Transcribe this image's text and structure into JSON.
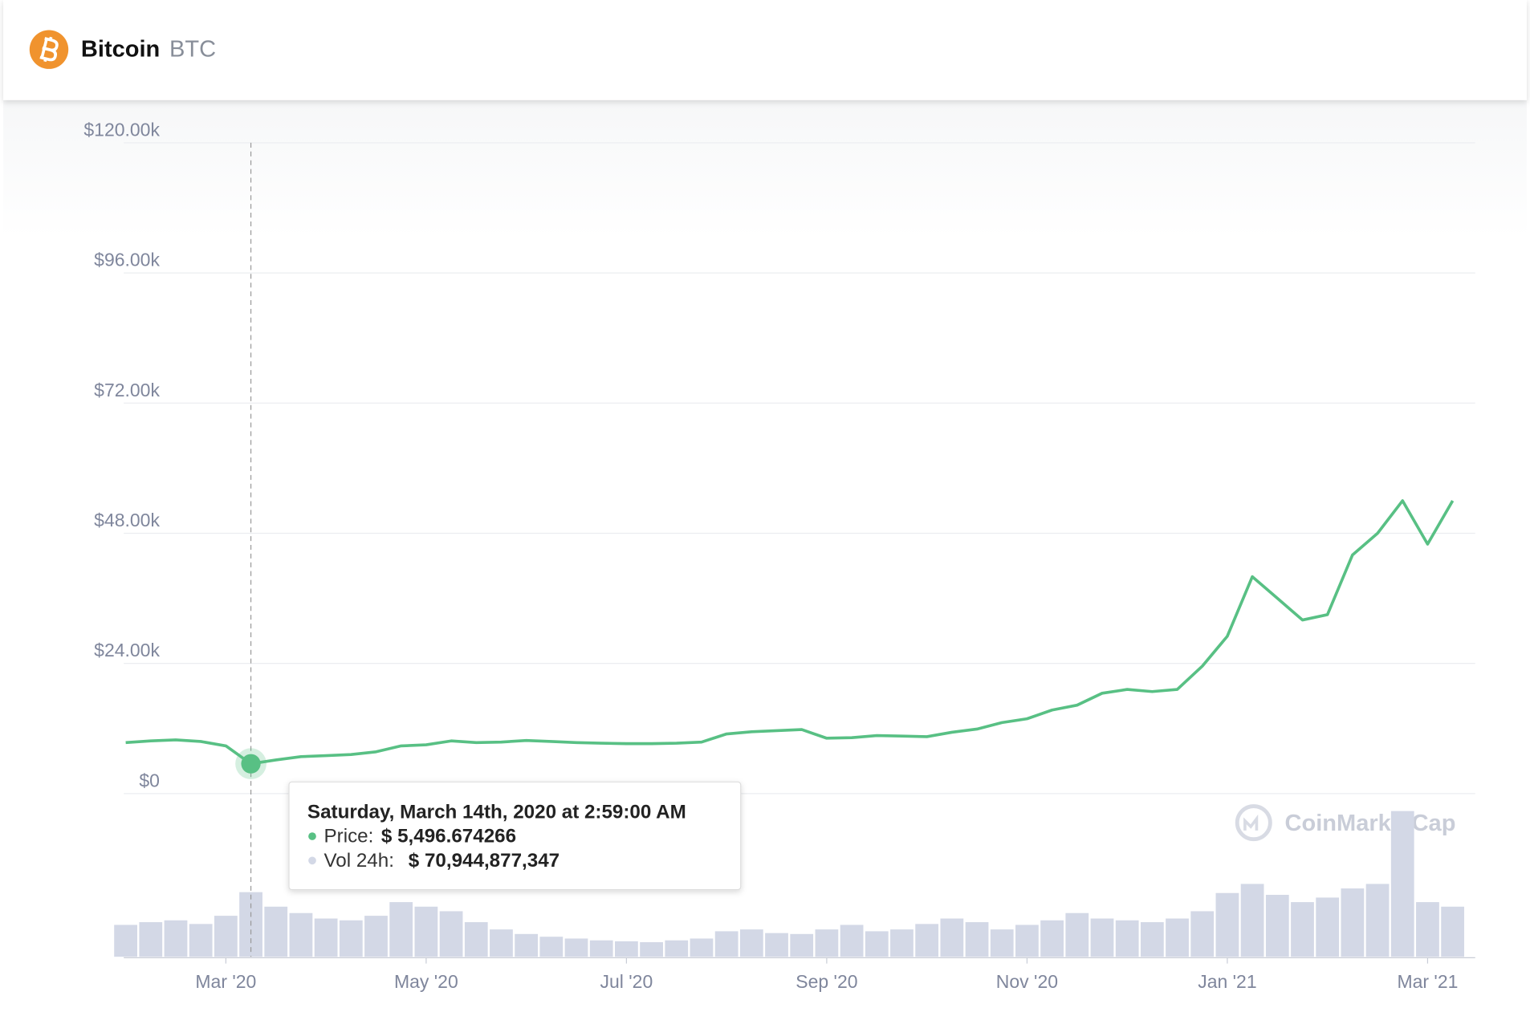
{
  "header": {
    "name": "Bitcoin",
    "symbol": "BTC"
  },
  "watermark": "CoinMarketCap",
  "tooltip": {
    "date": "Saturday, March 14th, 2020 at 2:59:00 AM",
    "price_label": "Price:",
    "price": "$ 5,496.674266",
    "volume_label": "Vol 24h:",
    "volume": "$ 70,944,877,347"
  },
  "chart_data": {
    "type": "line",
    "color": "#58c084",
    "grid": true,
    "categories": [
      null,
      null,
      null,
      null,
      "Mar '20",
      null,
      null,
      null,
      null,
      null,
      null,
      null,
      "May '20",
      null,
      null,
      null,
      null,
      null,
      null,
      null,
      "Jul '20",
      null,
      null,
      null,
      null,
      null,
      null,
      null,
      "Sep '20",
      null,
      null,
      null,
      null,
      null,
      null,
      null,
      "Nov '20",
      null,
      null,
      null,
      null,
      null,
      null,
      null,
      "Jan '21",
      null,
      null,
      null,
      null,
      null,
      null,
      null,
      "Mar '21",
      null
    ],
    "values": [
      9400,
      9700,
      9900,
      9600,
      8800,
      5500,
      6200,
      6800,
      7000,
      7200,
      7700,
      8800,
      9000,
      9700,
      9400,
      9500,
      9800,
      9600,
      9400,
      9300,
      9200,
      9200,
      9300,
      9500,
      11000,
      11400,
      11600,
      11800,
      10200,
      10300,
      10700,
      10600,
      10500,
      11300,
      11900,
      13100,
      13800,
      15400,
      16300,
      18500,
      19200,
      18800,
      19200,
      23500,
      29000,
      40000,
      36000,
      32000,
      33000,
      44000,
      48000,
      54000,
      46000,
      54000
    ],
    "volume": {
      "color": "#d3d8e6",
      "values": [
        35000000000,
        38000000000,
        40000000000,
        36000000000,
        45000000000,
        70944877347,
        55000000000,
        48000000000,
        42000000000,
        40000000000,
        45000000000,
        60000000000,
        55000000000,
        50000000000,
        38000000000,
        30000000000,
        25000000000,
        22000000000,
        20000000000,
        18000000000,
        17000000000,
        16000000000,
        18000000000,
        20000000000,
        28000000000,
        30000000000,
        26000000000,
        25000000000,
        30000000000,
        35000000000,
        28000000000,
        30000000000,
        36000000000,
        42000000000,
        38000000000,
        30000000000,
        35000000000,
        40000000000,
        48000000000,
        42000000000,
        40000000000,
        38000000000,
        42000000000,
        50000000000,
        70000000000,
        80000000000,
        68000000000,
        60000000000,
        65000000000,
        75000000000,
        80000000000,
        160000000000,
        60000000000,
        55000000000
      ]
    },
    "ylim": [
      0,
      120000
    ],
    "yticks": [
      {
        "value": 0,
        "label": "$0"
      },
      {
        "value": 24000,
        "label": "$24.00k"
      },
      {
        "value": 48000,
        "label": "$48.00k"
      },
      {
        "value": 72000,
        "label": "$72.00k"
      },
      {
        "value": 96000,
        "label": "$96.00k"
      },
      {
        "value": 120000,
        "label": "$120.00k"
      }
    ]
  }
}
